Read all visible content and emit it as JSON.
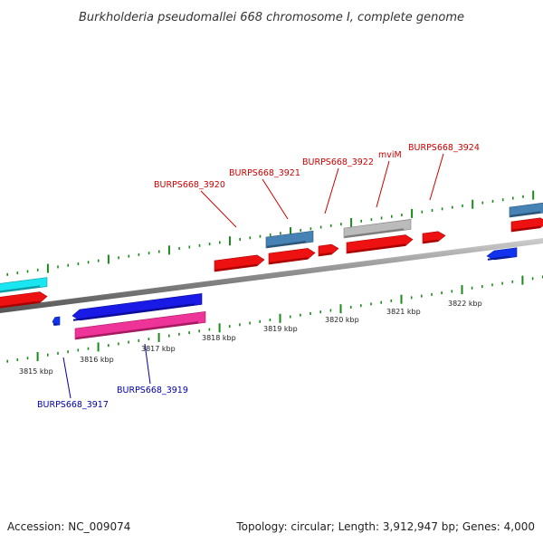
{
  "title": "Burkholderia pseudomallei 668 chromosome I, complete genome",
  "footer": {
    "accession": "Accession: NC_009074",
    "topology": "Topology: circular; Length: 3,912,947 bp; Genes: 4,000"
  },
  "colors": {
    "tick": "#1a8a1a",
    "backbone": "#888888",
    "label_forward": "#cc0000",
    "label_reverse": "#0000aa"
  },
  "kbp_labels": [
    "3815 kbp",
    "3816 kbp",
    "3817 kbp",
    "3818 kbp",
    "3819 kbp",
    "3820 kbp",
    "3821 kbp",
    "3822 kbp"
  ],
  "gene_labels": [
    {
      "text": "BURPS668_3920",
      "strand": "forward"
    },
    {
      "text": "BURPS668_3921",
      "strand": "forward"
    },
    {
      "text": "BURPS668_3922",
      "strand": "forward"
    },
    {
      "text": "mviM",
      "strand": "forward"
    },
    {
      "text": "BURPS668_3924",
      "strand": "forward"
    },
    {
      "text": "BURPS668_3917",
      "strand": "reverse"
    },
    {
      "text": "BURPS668_3919",
      "strand": "reverse"
    }
  ],
  "features": [
    {
      "name": "cyan-gene",
      "color": "#19e6f0"
    },
    {
      "name": "red-gene-left",
      "color": "#ee1111"
    },
    {
      "name": "small-blue-gene",
      "color": "#1133ee"
    },
    {
      "name": "blue-gene-3917-3918",
      "color": "#1a1ae6"
    },
    {
      "name": "pink-gene",
      "color": "#ee3399"
    },
    {
      "name": "red-gene-3920",
      "color": "#ee1111"
    },
    {
      "name": "steelblue-gene-top",
      "color": "#4682b4"
    },
    {
      "name": "red-gene-3921",
      "color": "#ee1111"
    },
    {
      "name": "red-gene-3922",
      "color": "#ee1111"
    },
    {
      "name": "gray-gene",
      "color": "#bbbbbb"
    },
    {
      "name": "red-gene-mviM",
      "color": "#ee1111"
    },
    {
      "name": "red-gene-3924",
      "color": "#ee1111"
    },
    {
      "name": "blue-gene-right",
      "color": "#1133ee"
    },
    {
      "name": "steelblue-gene-right",
      "color": "#4682b4"
    },
    {
      "name": "red-gene-right",
      "color": "#ee1111"
    }
  ]
}
